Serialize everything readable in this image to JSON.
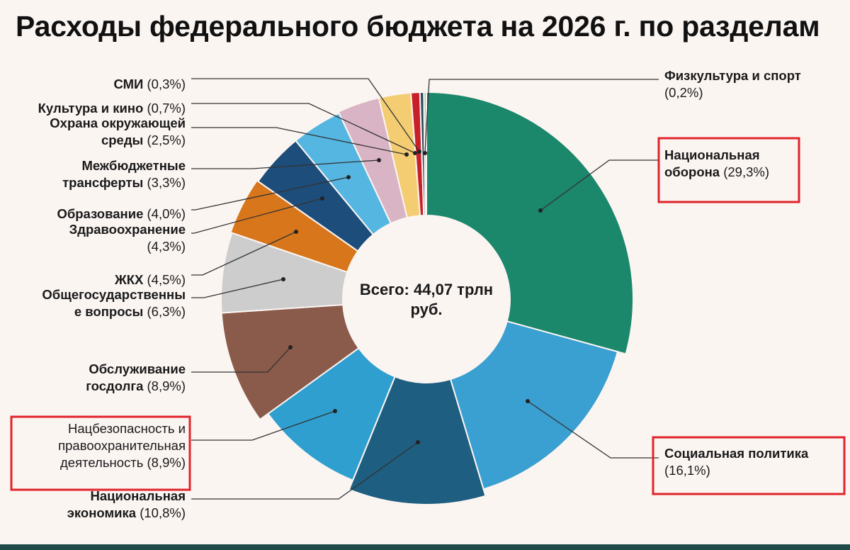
{
  "page": {
    "title": "Расходы федерального бюджета на 2026 г. по разделам"
  },
  "chart_data": {
    "type": "pie",
    "variant": "donut",
    "title": "Расходы федерального бюджета на 2026 г. по разделам",
    "center_label": [
      "Всего: 44,07 трлн",
      "руб."
    ],
    "unit": "%",
    "slices": [
      {
        "name": "Национальная оборона",
        "label_lines": [
          [
            "Национальная",
            ""
          ],
          [
            "оборона",
            " (29,3%)"
          ]
        ],
        "value": 29.3,
        "color": "#1b876b",
        "highlighted": true
      },
      {
        "name": "Социальная политика",
        "label_lines": [
          [
            "Социальная политика",
            ""
          ],
          [
            "",
            "(16,1%)"
          ]
        ],
        "value": 16.1,
        "color": "#3a9fd1",
        "highlighted": true
      },
      {
        "name": "Национальная экономика",
        "label_lines": [
          [
            "Национальная",
            ""
          ],
          [
            "экономика",
            " (10,8%)"
          ]
        ],
        "value": 10.8,
        "color": "#1e5e80",
        "highlighted": false
      },
      {
        "name": "Нацбезопасность и правоохранительная деятельность",
        "label_lines": [
          [
            "",
            "Нацбезопасность и"
          ],
          [
            "",
            "правоохранительная"
          ],
          [
            "",
            "деятельность (8,9%)"
          ]
        ],
        "value": 8.9,
        "color": "#2f9fd0",
        "highlighted": true
      },
      {
        "name": "Обслуживание госдолга",
        "label_lines": [
          [
            "Обслуживание",
            ""
          ],
          [
            "госдолга",
            " (8,9%)"
          ]
        ],
        "value": 8.9,
        "color": "#8a5a4a",
        "highlighted": false
      },
      {
        "name": "Общегосударственные вопросы",
        "label_lines": [
          [
            "Общегосударственны",
            ""
          ],
          [
            "е вопросы",
            " (6,3%)"
          ]
        ],
        "value": 6.3,
        "color": "#cdcdcd",
        "highlighted": false
      },
      {
        "name": "ЖКХ",
        "label_lines": [
          [
            "ЖКХ",
            " (4,5%)"
          ]
        ],
        "value": 4.5,
        "color": "#d8761c",
        "highlighted": false
      },
      {
        "name": "Здравоохранение",
        "label_lines": [
          [
            "Здравоохранение",
            ""
          ],
          [
            "",
            "(4,3%)"
          ]
        ],
        "value": 4.3,
        "color": "#1d4d7a",
        "highlighted": false
      },
      {
        "name": "Образование",
        "label_lines": [
          [
            "Образование",
            " (4,0%)"
          ]
        ],
        "value": 4.0,
        "color": "#55b6e2",
        "highlighted": false
      },
      {
        "name": "Межбюджетные трансферты",
        "label_lines": [
          [
            "Межбюджетные",
            ""
          ],
          [
            "трансферты",
            " (3,3%)"
          ]
        ],
        "value": 3.3,
        "color": "#d9b4c4",
        "highlighted": false
      },
      {
        "name": "Охрана окружающей среды",
        "label_lines": [
          [
            "Охрана окружающей",
            ""
          ],
          [
            "среды",
            " (2,5%)"
          ]
        ],
        "value": 2.5,
        "color": "#f4cd72",
        "highlighted": false
      },
      {
        "name": "Культура и кино",
        "label_lines": [
          [
            "Культура и кино",
            " (0,7%)"
          ]
        ],
        "value": 0.7,
        "color": "#c8202a",
        "highlighted": false
      },
      {
        "name": "СМИ",
        "label_lines": [
          [
            "СМИ",
            " (0,3%)"
          ]
        ],
        "value": 0.3,
        "color": "#2b4a5a",
        "highlighted": false
      },
      {
        "name": "Физкультура и спорт",
        "label_lines": [
          [
            "Физкультура и спорт",
            ""
          ],
          [
            "",
            "(0,2%)"
          ]
        ],
        "value": 0.2,
        "color": "#9ed3b8",
        "highlighted": false
      }
    ],
    "highlight_color": "#e0242b",
    "legend": "none"
  }
}
